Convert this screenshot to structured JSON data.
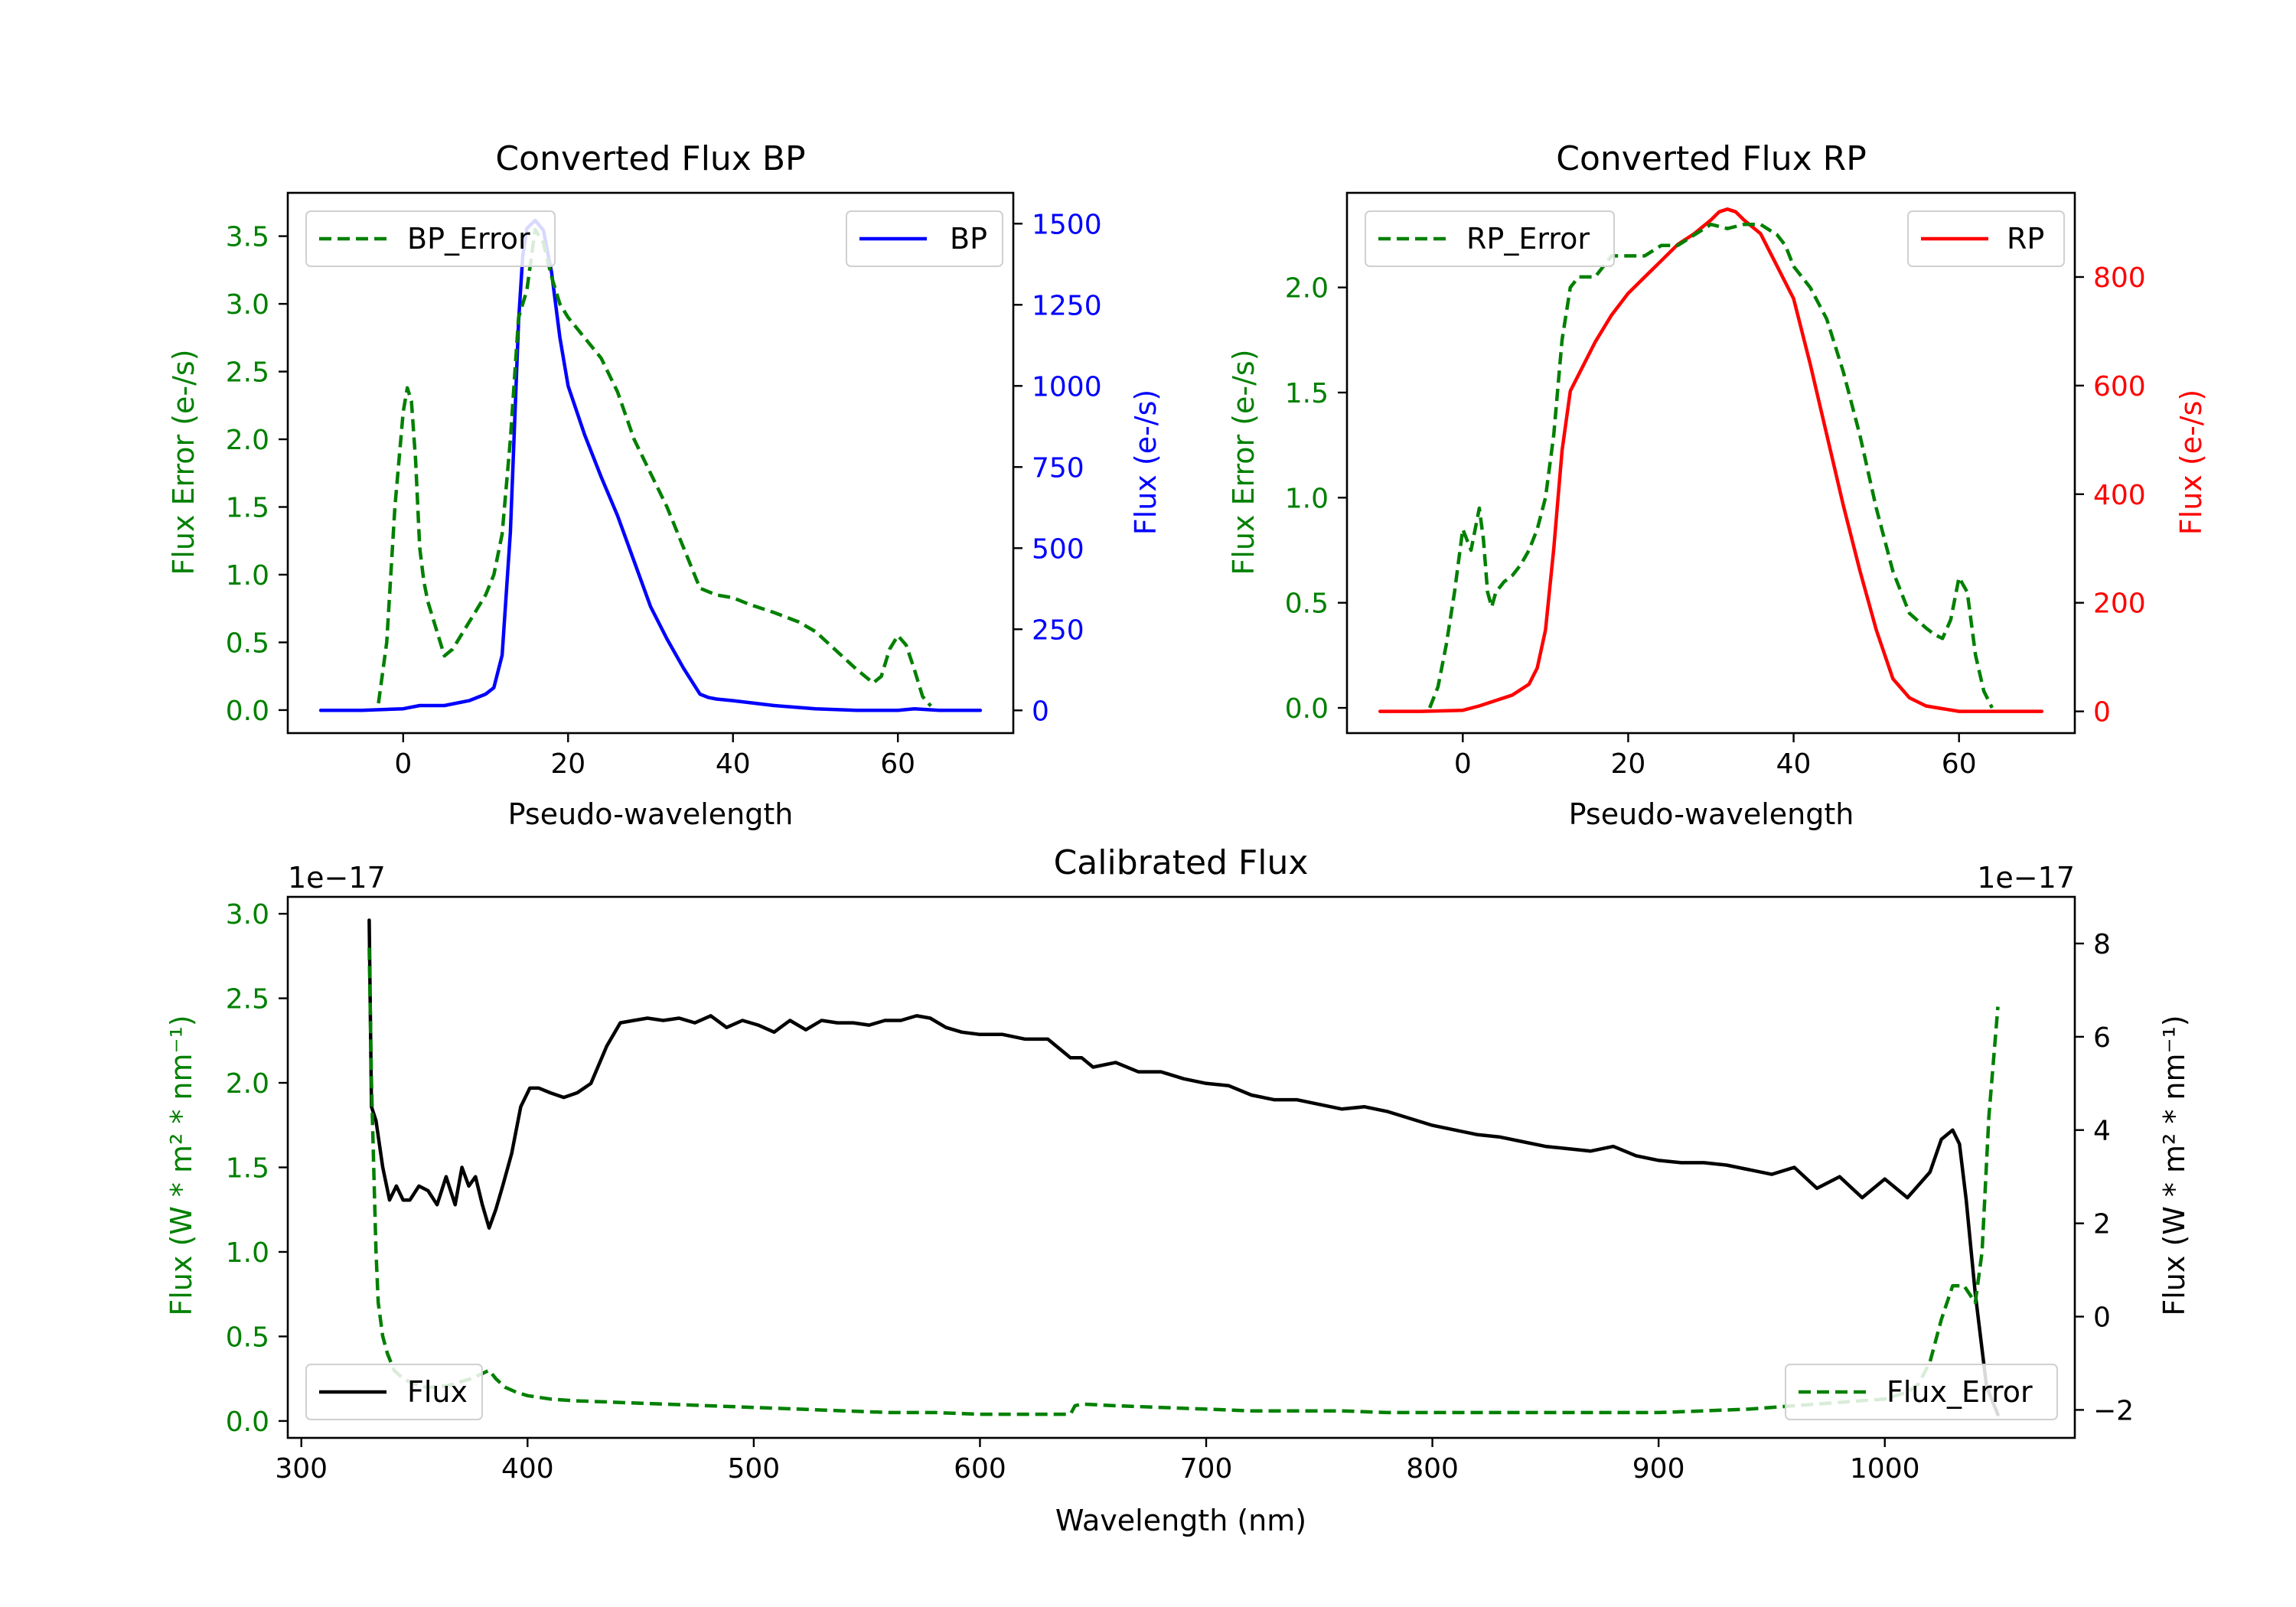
{
  "chart_data": [
    {
      "id": "bp",
      "type": "line",
      "title": "Converted Flux BP",
      "xlabel": "Pseudo-wavelength",
      "xlim": [
        -14,
        74
      ],
      "xticks": [
        0,
        20,
        40,
        60
      ],
      "left_axis": {
        "label": "Flux Error (e-/s)",
        "color": "#008000",
        "ylim": [
          -0.17,
          3.82
        ],
        "ticks": [
          0.0,
          0.5,
          1.0,
          1.5,
          2.0,
          2.5,
          3.0,
          3.5
        ],
        "tick_decimals": 1
      },
      "right_axis": {
        "label": "Flux (e-/s)",
        "color": "#0000ff",
        "ylim": [
          -70,
          1595
        ],
        "ticks": [
          0,
          250,
          500,
          750,
          1000,
          1250,
          1500
        ],
        "tick_decimals": 0
      },
      "series": [
        {
          "name": "BP",
          "axis": "right",
          "color": "#0000ff",
          "dash": "solid",
          "x": [
            -10,
            -5,
            0,
            2,
            5,
            8,
            10,
            11,
            12,
            13,
            14,
            14.5,
            15,
            16,
            17,
            18,
            19,
            20,
            22,
            24,
            26,
            28,
            30,
            32,
            34,
            36,
            37,
            38,
            40,
            45,
            50,
            55,
            60,
            62,
            65,
            68,
            70
          ],
          "y": [
            0,
            0,
            5,
            15,
            15,
            30,
            50,
            70,
            170,
            550,
            1200,
            1400,
            1485,
            1510,
            1480,
            1350,
            1150,
            1000,
            850,
            720,
            600,
            460,
            320,
            220,
            130,
            50,
            40,
            35,
            30,
            15,
            5,
            0,
            0,
            5,
            0,
            0,
            0
          ]
        },
        {
          "name": "BP_Error",
          "axis": "left",
          "color": "#008000",
          "dash": "dashed",
          "x": [
            -3,
            -2,
            -1,
            0,
            0.5,
            1,
            1.5,
            2,
            2.5,
            3,
            4,
            5,
            6,
            7,
            8,
            9,
            10,
            11,
            12,
            13,
            14,
            15,
            16,
            17,
            18,
            19,
            20,
            22,
            24,
            26,
            28,
            30,
            32,
            34,
            36,
            38,
            40,
            42,
            45,
            48,
            50,
            55,
            57,
            58,
            59,
            60,
            61,
            62,
            63,
            64
          ],
          "y": [
            0.05,
            0.5,
            1.5,
            2.2,
            2.38,
            2.28,
            1.85,
            1.2,
            0.95,
            0.8,
            0.6,
            0.4,
            0.45,
            0.55,
            0.65,
            0.75,
            0.85,
            1.0,
            1.3,
            2.0,
            2.9,
            3.1,
            3.55,
            3.45,
            3.2,
            3.0,
            2.9,
            2.75,
            2.6,
            2.35,
            2.0,
            1.75,
            1.5,
            1.2,
            0.9,
            0.85,
            0.83,
            0.78,
            0.72,
            0.65,
            0.58,
            0.3,
            0.2,
            0.25,
            0.45,
            0.55,
            0.48,
            0.3,
            0.1,
            0.03
          ]
        }
      ],
      "legends": [
        {
          "series": "BP_Error",
          "label": "BP_Error",
          "position": "upper left"
        },
        {
          "series": "BP",
          "label": "BP",
          "position": "upper right"
        }
      ]
    },
    {
      "id": "rp",
      "type": "line",
      "title": "Converted Flux RP",
      "xlabel": "Pseudo-wavelength",
      "xlim": [
        -14,
        74
      ],
      "xticks": [
        0,
        20,
        40,
        60
      ],
      "left_axis": {
        "label": "Flux Error (e-/s)",
        "color": "#008000",
        "ylim": [
          -0.12,
          2.45
        ],
        "ticks": [
          0.0,
          0.5,
          1.0,
          1.5,
          2.0
        ],
        "tick_decimals": 1
      },
      "right_axis": {
        "label": "Flux (e-/s)",
        "color": "#ff0000",
        "ylim": [
          -40,
          955
        ],
        "ticks": [
          0,
          200,
          400,
          600,
          800
        ],
        "tick_decimals": 0
      },
      "series": [
        {
          "name": "RP",
          "axis": "right",
          "color": "#ff0000",
          "dash": "solid",
          "x": [
            -10,
            -5,
            0,
            2,
            4,
            6,
            8,
            9,
            10,
            11,
            12,
            13,
            14,
            16,
            18,
            20,
            22,
            24,
            26,
            28,
            30,
            31,
            32,
            33,
            34,
            36,
            38,
            40,
            42,
            44,
            46,
            48,
            50,
            52,
            54,
            56,
            58,
            60,
            65,
            70
          ],
          "y": [
            0,
            0,
            2,
            10,
            20,
            30,
            50,
            80,
            150,
            300,
            480,
            590,
            620,
            680,
            730,
            770,
            800,
            830,
            860,
            880,
            905,
            920,
            925,
            920,
            905,
            880,
            820,
            760,
            640,
            510,
            380,
            260,
            150,
            60,
            25,
            10,
            5,
            0,
            0,
            0
          ]
        },
        {
          "name": "RP_Error",
          "axis": "left",
          "color": "#008000",
          "dash": "dashed",
          "x": [
            -4,
            -3,
            -2,
            -1,
            0,
            0.5,
            1,
            1.5,
            2,
            2.5,
            3,
            3.5,
            4,
            5,
            6,
            7,
            8,
            9,
            10,
            11,
            12,
            13,
            14,
            15,
            16,
            17,
            18,
            20,
            22,
            24,
            26,
            28,
            30,
            32,
            34,
            36,
            38,
            39,
            40,
            41,
            42,
            44,
            46,
            48,
            50,
            52,
            54,
            56,
            57,
            58,
            59,
            60,
            61,
            62,
            63,
            64
          ],
          "y": [
            0.0,
            0.1,
            0.3,
            0.55,
            0.85,
            0.8,
            0.75,
            0.85,
            0.95,
            0.8,
            0.55,
            0.48,
            0.55,
            0.6,
            0.63,
            0.68,
            0.75,
            0.85,
            1.0,
            1.3,
            1.75,
            2.0,
            2.05,
            2.05,
            2.05,
            2.1,
            2.15,
            2.15,
            2.15,
            2.2,
            2.2,
            2.25,
            2.3,
            2.28,
            2.3,
            2.3,
            2.25,
            2.2,
            2.1,
            2.05,
            2.0,
            1.85,
            1.6,
            1.3,
            0.95,
            0.65,
            0.45,
            0.38,
            0.35,
            0.33,
            0.42,
            0.62,
            0.55,
            0.25,
            0.08,
            0.0
          ]
        }
      ],
      "legends": [
        {
          "series": "RP_Error",
          "label": "RP_Error",
          "position": "upper left"
        },
        {
          "series": "RP",
          "label": "RP",
          "position": "upper right"
        }
      ]
    },
    {
      "id": "cal",
      "type": "line",
      "title": "Calibrated Flux",
      "xlabel": "Wavelength (nm)",
      "xlim": [
        294,
        1084
      ],
      "xticks": [
        300,
        400,
        500,
        600,
        700,
        800,
        900,
        1000
      ],
      "left_axis": {
        "label": "Flux (W * m² * nm⁻¹)",
        "color": "#008000",
        "ylim": [
          -0.1,
          3.1
        ],
        "ticks": [
          0.0,
          0.5,
          1.0,
          1.5,
          2.0,
          2.5,
          3.0
        ],
        "tick_decimals": 1,
        "offset_text": "1e−17"
      },
      "right_axis": {
        "label": "Flux (W * m² * nm⁻¹)",
        "color": "#000000",
        "ylim": [
          -2.6,
          9.0
        ],
        "ticks": [
          -2,
          0,
          2,
          4,
          6,
          8
        ],
        "tick_decimals": 0,
        "offset_text": "1e−17"
      },
      "series": [
        {
          "name": "Flux",
          "axis": "right",
          "color": "#000000",
          "dash": "solid",
          "x": [
            330,
            331,
            333,
            336,
            339,
            342,
            345,
            348,
            352,
            356,
            360,
            364,
            368,
            371,
            374,
            377,
            380,
            383,
            386,
            389,
            393,
            397,
            401,
            405,
            410,
            416,
            422,
            428,
            435,
            441,
            447,
            453,
            460,
            467,
            474,
            481,
            488,
            495,
            502,
            509,
            516,
            523,
            530,
            537,
            544,
            551,
            558,
            565,
            572,
            578,
            585,
            592,
            600,
            610,
            620,
            630,
            640,
            645,
            650,
            660,
            670,
            680,
            690,
            700,
            710,
            720,
            730,
            740,
            750,
            760,
            770,
            780,
            790,
            800,
            810,
            820,
            830,
            840,
            850,
            860,
            870,
            880,
            890,
            900,
            910,
            920,
            930,
            940,
            950,
            960,
            970,
            980,
            990,
            1000,
            1010,
            1020,
            1025,
            1030,
            1033,
            1036,
            1040,
            1045,
            1050
          ],
          "y": [
            8.5,
            4.5,
            4.2,
            3.2,
            2.5,
            2.8,
            2.5,
            2.5,
            2.8,
            2.7,
            2.4,
            3.0,
            2.4,
            3.2,
            2.8,
            3.0,
            2.4,
            1.9,
            2.3,
            2.8,
            3.5,
            4.5,
            4.9,
            4.9,
            4.8,
            4.7,
            4.8,
            5.0,
            5.8,
            6.3,
            6.35,
            6.4,
            6.35,
            6.4,
            6.3,
            6.45,
            6.2,
            6.35,
            6.25,
            6.1,
            6.35,
            6.15,
            6.35,
            6.3,
            6.3,
            6.25,
            6.35,
            6.35,
            6.45,
            6.4,
            6.2,
            6.1,
            6.05,
            6.05,
            5.95,
            5.95,
            5.55,
            5.55,
            5.35,
            5.45,
            5.25,
            5.25,
            5.1,
            5.0,
            4.95,
            4.75,
            4.65,
            4.65,
            4.55,
            4.45,
            4.5,
            4.4,
            4.25,
            4.1,
            4.0,
            3.9,
            3.85,
            3.75,
            3.65,
            3.6,
            3.55,
            3.65,
            3.45,
            3.35,
            3.3,
            3.3,
            3.25,
            3.15,
            3.05,
            3.2,
            2.75,
            3.0,
            2.55,
            2.95,
            2.55,
            3.1,
            3.8,
            4.0,
            3.7,
            2.5,
            0.5,
            -1.5,
            -2.1
          ]
        },
        {
          "name": "Flux_Error",
          "axis": "left",
          "color": "#008000",
          "dash": "dashed",
          "x": [
            330,
            331,
            332,
            333,
            334,
            336,
            338,
            341,
            345,
            350,
            355,
            360,
            365,
            370,
            375,
            380,
            383,
            386,
            390,
            395,
            400,
            410,
            420,
            440,
            460,
            480,
            500,
            520,
            540,
            560,
            580,
            600,
            620,
            640,
            642,
            645,
            660,
            680,
            700,
            720,
            740,
            760,
            780,
            800,
            820,
            840,
            860,
            880,
            900,
            920,
            940,
            960,
            980,
            1000,
            1010,
            1015,
            1020,
            1025,
            1030,
            1035,
            1040,
            1043,
            1046,
            1050
          ],
          "y": [
            2.8,
            2.0,
            1.5,
            1.0,
            0.7,
            0.5,
            0.4,
            0.3,
            0.25,
            0.22,
            0.2,
            0.2,
            0.21,
            0.23,
            0.25,
            0.28,
            0.3,
            0.25,
            0.2,
            0.17,
            0.15,
            0.13,
            0.12,
            0.11,
            0.1,
            0.09,
            0.08,
            0.07,
            0.06,
            0.05,
            0.05,
            0.04,
            0.04,
            0.04,
            0.09,
            0.1,
            0.09,
            0.08,
            0.07,
            0.06,
            0.06,
            0.06,
            0.05,
            0.05,
            0.05,
            0.05,
            0.05,
            0.05,
            0.05,
            0.06,
            0.07,
            0.09,
            0.11,
            0.13,
            0.17,
            0.22,
            0.35,
            0.6,
            0.8,
            0.8,
            0.7,
            1.0,
            1.8,
            2.45
          ]
        }
      ],
      "legends": [
        {
          "series": "Flux",
          "label": "Flux",
          "position": "lower left"
        },
        {
          "series": "Flux_Error",
          "label": "Flux_Error",
          "position": "lower right"
        }
      ]
    }
  ]
}
